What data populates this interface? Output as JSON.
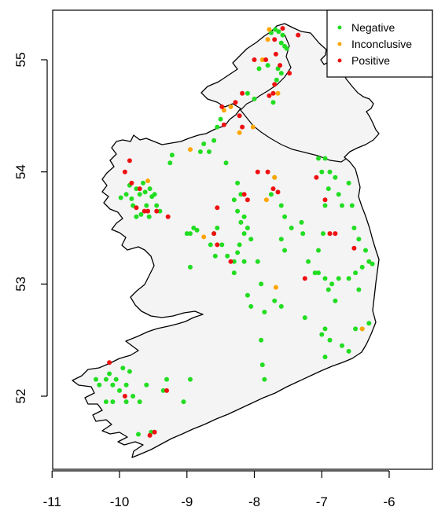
{
  "chart_data": {
    "type": "scatter",
    "title": "",
    "xlabel": "",
    "ylabel": "",
    "xlim": [
      -11,
      -5.3
    ],
    "ylim": [
      51.35,
      55.45
    ],
    "x_ticks": [
      "-11",
      "-10",
      "-9",
      "-8",
      "-7",
      "-6"
    ],
    "y_ticks": [
      "52",
      "53",
      "54",
      "55"
    ],
    "legend_position": "top-right",
    "grid": false,
    "series": [
      {
        "name": "Negative",
        "color": "#22dd22",
        "points": [
          [
            -7.69,
            55.27
          ],
          [
            -7.64,
            55.25
          ],
          [
            -7.58,
            55.22
          ],
          [
            -7.55,
            55.12
          ],
          [
            -7.75,
            55.24
          ],
          [
            -7.6,
            55.15
          ],
          [
            -7.52,
            55.1
          ],
          [
            -7.93,
            54.92
          ],
          [
            -7.8,
            54.95
          ],
          [
            -7.65,
            54.92
          ],
          [
            -7.6,
            54.88
          ],
          [
            -7.67,
            54.82
          ],
          [
            -8.1,
            54.7
          ],
          [
            -8.0,
            54.65
          ],
          [
            -7.72,
            54.62
          ],
          [
            -8.5,
            54.47
          ],
          [
            -8.55,
            54.4
          ],
          [
            -8.6,
            54.28
          ],
          [
            -8.75,
            54.25
          ],
          [
            -8.8,
            54.18
          ],
          [
            -8.67,
            54.18
          ],
          [
            -9.22,
            54.15
          ],
          [
            -9.25,
            54.08
          ],
          [
            -8.42,
            54.08
          ],
          [
            -9.98,
            53.77
          ],
          [
            -9.9,
            53.8
          ],
          [
            -9.85,
            53.88
          ],
          [
            -9.8,
            53.7
          ],
          [
            -9.75,
            53.85
          ],
          [
            -9.7,
            53.8
          ],
          [
            -9.65,
            53.9
          ],
          [
            -9.62,
            53.82
          ],
          [
            -9.6,
            53.7
          ],
          [
            -9.55,
            53.85
          ],
          [
            -9.52,
            53.78
          ],
          [
            -9.48,
            53.8
          ],
          [
            -9.45,
            53.7
          ],
          [
            -9.4,
            53.65
          ],
          [
            -9.68,
            53.62
          ],
          [
            -9.56,
            53.6
          ],
          [
            -9.75,
            53.6
          ],
          [
            -9.82,
            53.76
          ],
          [
            -8.25,
            53.9
          ],
          [
            -8.2,
            53.8
          ],
          [
            -8.3,
            53.75
          ],
          [
            -8.25,
            53.65
          ],
          [
            -8.15,
            53.6
          ],
          [
            -8.2,
            53.55
          ],
          [
            -8.1,
            53.5
          ],
          [
            -8.15,
            53.45
          ],
          [
            -8.05,
            53.4
          ],
          [
            -8.22,
            53.35
          ],
          [
            -8.25,
            53.28
          ],
          [
            -8.3,
            53.2
          ],
          [
            -8.15,
            53.2
          ],
          [
            -7.95,
            53.2
          ],
          [
            -8.3,
            53.1
          ],
          [
            -8.1,
            52.9
          ],
          [
            -8.05,
            52.8
          ],
          [
            -7.9,
            53.0
          ],
          [
            -7.75,
            53.8
          ],
          [
            -7.7,
            53.95
          ],
          [
            -7.6,
            53.7
          ],
          [
            -7.55,
            53.6
          ],
          [
            -7.45,
            53.5
          ],
          [
            -7.6,
            53.4
          ],
          [
            -7.55,
            53.3
          ],
          [
            -7.3,
            53.55
          ],
          [
            -7.28,
            53.45
          ],
          [
            -7.2,
            53.2
          ],
          [
            -7.1,
            53.1
          ],
          [
            -7.05,
            53.3
          ],
          [
            -6.98,
            53.45
          ],
          [
            -6.95,
            53.7
          ],
          [
            -6.9,
            53.85
          ],
          [
            -6.8,
            53.95
          ],
          [
            -6.75,
            53.8
          ],
          [
            -6.7,
            53.7
          ],
          [
            -6.6,
            53.9
          ],
          [
            -6.88,
            54.0
          ],
          [
            -6.95,
            54.12
          ],
          [
            -7.05,
            54.12
          ],
          [
            -7.0,
            54.0
          ],
          [
            -6.55,
            53.7
          ],
          [
            -6.52,
            53.5
          ],
          [
            -6.45,
            53.4
          ],
          [
            -6.35,
            53.3
          ],
          [
            -6.3,
            53.2
          ],
          [
            -6.25,
            53.18
          ],
          [
            -6.4,
            53.15
          ],
          [
            -6.5,
            53.1
          ],
          [
            -6.6,
            53.05
          ],
          [
            -6.75,
            53.05
          ],
          [
            -6.85,
            53.0
          ],
          [
            -6.95,
            53.05
          ],
          [
            -7.05,
            53.1
          ],
          [
            -6.9,
            52.95
          ],
          [
            -6.8,
            52.85
          ],
          [
            -6.45,
            52.95
          ],
          [
            -7.7,
            52.85
          ],
          [
            -7.6,
            52.8
          ],
          [
            -7.85,
            52.75
          ],
          [
            -7.25,
            52.7
          ],
          [
            -6.95,
            52.6
          ],
          [
            -6.88,
            52.5
          ],
          [
            -6.7,
            52.45
          ],
          [
            -6.6,
            52.4
          ],
          [
            -6.5,
            52.6
          ],
          [
            -6.4,
            52.6
          ],
          [
            -6.3,
            52.65
          ],
          [
            -6.95,
            52.35
          ],
          [
            -7.0,
            52.55
          ],
          [
            -7.9,
            52.5
          ],
          [
            -7.88,
            52.28
          ],
          [
            -7.85,
            52.15
          ],
          [
            -8.95,
            53.45
          ],
          [
            -8.9,
            53.5
          ],
          [
            -8.85,
            53.48
          ],
          [
            -9.0,
            53.45
          ],
          [
            -8.55,
            53.5
          ],
          [
            -8.6,
            53.45
          ],
          [
            -8.65,
            53.35
          ],
          [
            -8.58,
            53.25
          ],
          [
            -8.48,
            53.35
          ],
          [
            -8.4,
            53.25
          ],
          [
            -8.95,
            53.15
          ],
          [
            -10.35,
            52.15
          ],
          [
            -10.3,
            52.1
          ],
          [
            -10.2,
            52.15
          ],
          [
            -10.15,
            52.2
          ],
          [
            -10.1,
            52.1
          ],
          [
            -10.05,
            52.15
          ],
          [
            -10.0,
            52.05
          ],
          [
            -9.9,
            52.1
          ],
          [
            -9.85,
            52.22
          ],
          [
            -9.95,
            52.25
          ],
          [
            -9.8,
            52.0
          ],
          [
            -9.9,
            51.95
          ],
          [
            -10.2,
            51.95
          ],
          [
            -10.1,
            51.95
          ],
          [
            -9.6,
            52.1
          ],
          [
            -9.7,
            51.95
          ],
          [
            -9.3,
            52.15
          ],
          [
            -9.35,
            52.05
          ],
          [
            -9.05,
            51.95
          ],
          [
            -8.95,
            52.15
          ],
          [
            -9.72,
            51.66
          ],
          [
            -9.53,
            51.68
          ]
        ]
      },
      {
        "name": "Inconclusive",
        "color": "#ffa500",
        "points": [
          [
            -7.78,
            55.27
          ],
          [
            -7.8,
            55.18
          ],
          [
            -7.88,
            55.0
          ],
          [
            -7.65,
            54.7
          ],
          [
            -8.35,
            54.58
          ],
          [
            -8.45,
            54.55
          ],
          [
            -8.22,
            54.35
          ],
          [
            -8.02,
            54.4
          ],
          [
            -8.95,
            54.2
          ],
          [
            -9.58,
            53.92
          ],
          [
            -7.7,
            53.95
          ],
          [
            -7.82,
            53.75
          ],
          [
            -8.75,
            53.42
          ],
          [
            -7.68,
            52.97
          ],
          [
            -6.4,
            52.6
          ]
        ]
      },
      {
        "name": "Positive",
        "color": "#ee1111",
        "points": [
          [
            -7.35,
            55.22
          ],
          [
            -7.58,
            55.28
          ],
          [
            -7.7,
            55.18
          ],
          [
            -7.68,
            55.05
          ],
          [
            -7.62,
            54.95
          ],
          [
            -7.83,
            55.0
          ],
          [
            -8.0,
            55.0
          ],
          [
            -7.48,
            54.88
          ],
          [
            -7.7,
            54.78
          ],
          [
            -8.18,
            54.7
          ],
          [
            -7.72,
            54.7
          ],
          [
            -7.78,
            54.68
          ],
          [
            -8.28,
            54.62
          ],
          [
            -8.48,
            54.58
          ],
          [
            -8.22,
            54.5
          ],
          [
            -8.18,
            54.4
          ],
          [
            -8.45,
            54.42
          ],
          [
            -9.85,
            54.1
          ],
          [
            -9.92,
            54.0
          ],
          [
            -9.82,
            53.9
          ],
          [
            -9.7,
            53.85
          ],
          [
            -9.63,
            53.65
          ],
          [
            -9.58,
            53.65
          ],
          [
            -9.45,
            53.65
          ],
          [
            -9.28,
            53.6
          ],
          [
            -9.75,
            53.68
          ],
          [
            -7.95,
            54.0
          ],
          [
            -7.8,
            54.0
          ],
          [
            -8.15,
            53.8
          ],
          [
            -8.1,
            53.75
          ],
          [
            -7.72,
            53.85
          ],
          [
            -7.65,
            53.82
          ],
          [
            -8.55,
            53.68
          ],
          [
            -8.6,
            53.45
          ],
          [
            -8.55,
            53.35
          ],
          [
            -8.35,
            53.2
          ],
          [
            -7.08,
            53.95
          ],
          [
            -6.95,
            53.75
          ],
          [
            -6.88,
            53.45
          ],
          [
            -6.8,
            53.45
          ],
          [
            -6.52,
            53.32
          ],
          [
            -7.25,
            53.05
          ],
          [
            -10.15,
            52.3
          ],
          [
            -9.92,
            52.0
          ],
          [
            -9.3,
            52.05
          ],
          [
            -9.55,
            51.65
          ],
          [
            -9.48,
            51.68
          ]
        ]
      }
    ]
  }
}
